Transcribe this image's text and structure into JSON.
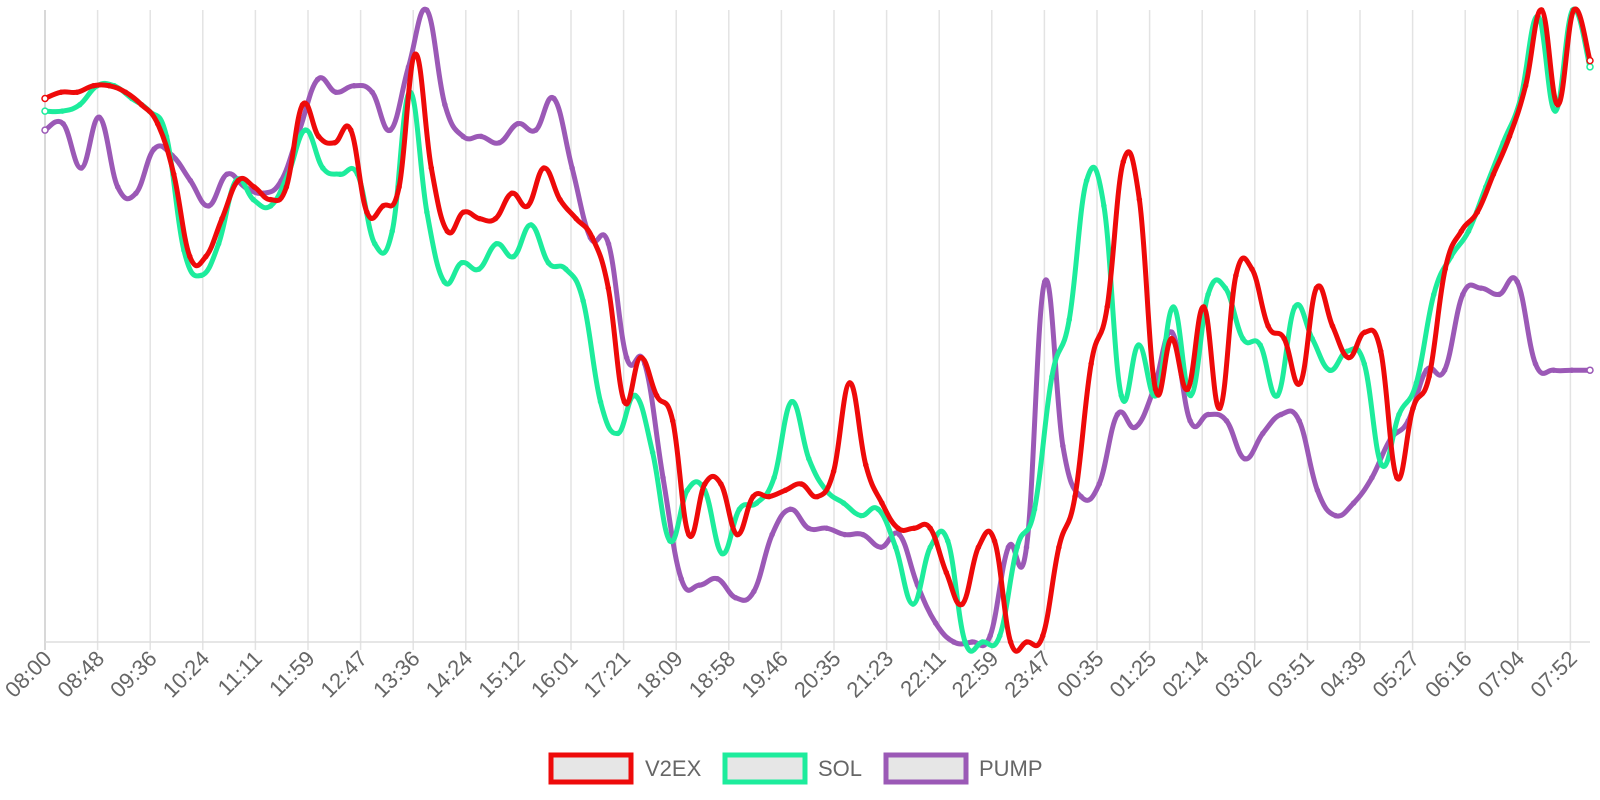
{
  "chart_data": {
    "type": "line",
    "title": "",
    "xlabel": "",
    "ylabel": "",
    "y_axis_labels": "none",
    "grid": "vertical",
    "legend_position": "bottom-center",
    "x_tick_labels": [
      "08:00",
      "08:48",
      "09:36",
      "10:24",
      "11:11",
      "11:59",
      "12:47",
      "13:36",
      "14:24",
      "15:12",
      "16:01",
      "17:21",
      "18:09",
      "18:58",
      "19:46",
      "20:35",
      "21:23",
      "22:11",
      "22:59",
      "23:47",
      "00:35",
      "01:25",
      "02:14",
      "03:02",
      "03:51",
      "04:39",
      "05:27",
      "06:16",
      "07:04",
      "07:52"
    ],
    "ylim": [
      0,
      100
    ],
    "series": [
      {
        "name": "V2EX",
        "color": "#ee0a0a",
        "values": [
          86,
          87,
          87,
          88,
          88,
          87,
          85,
          82,
          74,
          61,
          61,
          67,
          73,
          72,
          70,
          72,
          85,
          80,
          79,
          81,
          68,
          69,
          72,
          93,
          75,
          65,
          68,
          67,
          67,
          71,
          69,
          75,
          70,
          67,
          64,
          56,
          38,
          45,
          39,
          35,
          17,
          25,
          25,
          17,
          23,
          23,
          24,
          25,
          23,
          27,
          41,
          28,
          22,
          18,
          18,
          18,
          11,
          6,
          15,
          16,
          0,
          0,
          1,
          15,
          23,
          44,
          53,
          76,
          70,
          40,
          48,
          40,
          53,
          37,
          58,
          59,
          50,
          48,
          41,
          56,
          50,
          45,
          49,
          46,
          26,
          37,
          42,
          59,
          65,
          68,
          74,
          80,
          88,
          100,
          85,
          100,
          92
        ]
      },
      {
        "name": "SOL",
        "color": "#1dec9c",
        "values": [
          84,
          84,
          85,
          88,
          88,
          86,
          84,
          80,
          62,
          58,
          63,
          73,
          70,
          69,
          74,
          81,
          75,
          74,
          74,
          63,
          65,
          87,
          68,
          57,
          60,
          59,
          63,
          61,
          66,
          60,
          59,
          54,
          38,
          33,
          39,
          30,
          16,
          24,
          24,
          14,
          21,
          22,
          26,
          38,
          29,
          24,
          22,
          20,
          21,
          15,
          6,
          15,
          16,
          0,
          0,
          1,
          15,
          21,
          42,
          51,
          73,
          69,
          39,
          47,
          39,
          53,
          39,
          55,
          56,
          48,
          47,
          39,
          53,
          48,
          43,
          46,
          44,
          28,
          36,
          41,
          55,
          61,
          65,
          72,
          79,
          86,
          99,
          84,
          100,
          91
        ]
      },
      {
        "name": "PUMP",
        "color": "#9b59b6",
        "values": [
          81,
          82,
          75,
          83,
          72,
          71,
          78,
          77,
          73,
          69,
          74,
          72,
          71,
          73,
          81,
          89,
          87,
          88,
          87,
          81,
          91,
          100,
          85,
          80,
          80,
          79,
          82,
          81,
          86,
          75,
          64,
          63,
          45,
          44,
          26,
          10,
          9,
          10,
          7,
          8,
          17,
          21,
          18,
          18,
          17,
          17,
          15,
          17,
          9,
          3,
          0,
          0,
          1,
          15,
          15,
          57,
          31,
          23,
          25,
          36,
          34,
          40,
          49,
          35,
          36,
          35,
          29,
          33,
          36,
          35,
          24,
          20,
          22,
          26,
          32,
          35,
          43,
          43,
          55,
          56,
          55,
          57,
          44,
          43,
          43,
          43
        ]
      }
    ]
  },
  "legend": {
    "items": [
      {
        "label": "V2EX"
      },
      {
        "label": "SOL"
      },
      {
        "label": "PUMP"
      }
    ]
  }
}
